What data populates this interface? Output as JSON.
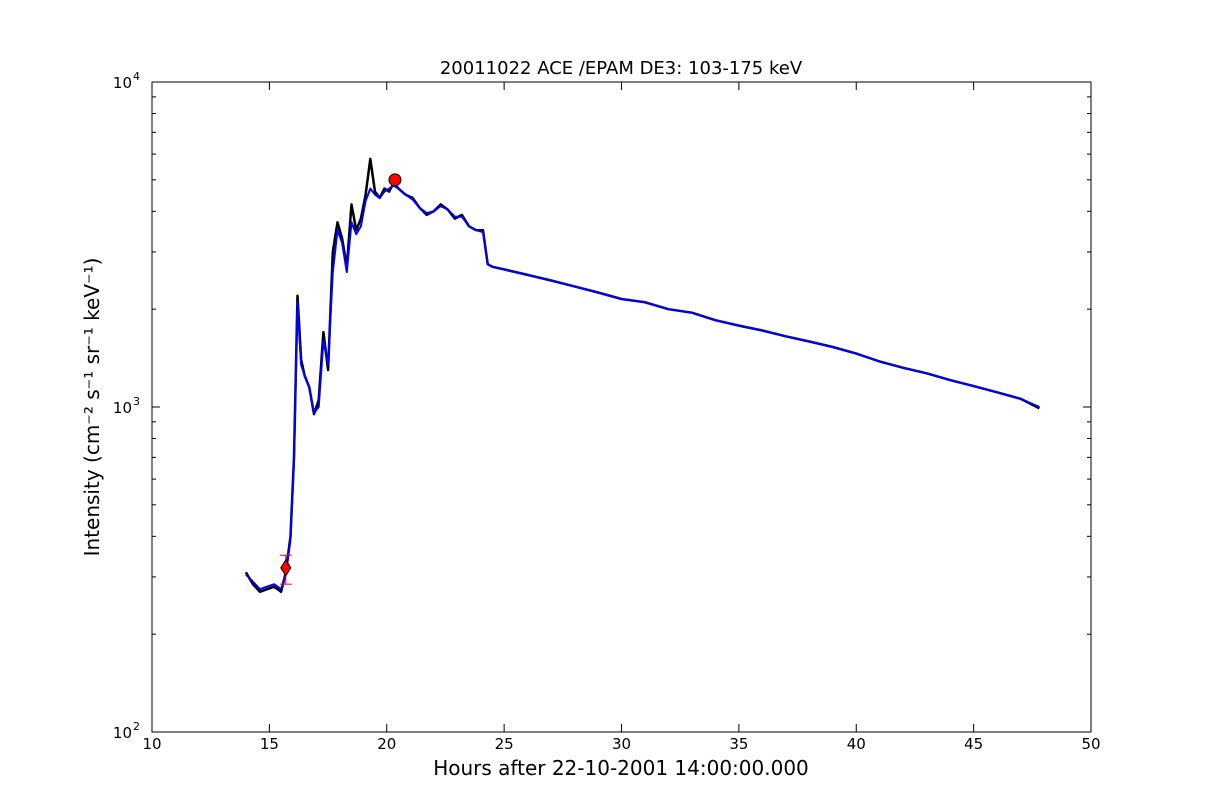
{
  "chart_data": {
    "type": "line",
    "title": "20011022 ACE /EPAM DE3: 103-175 keV",
    "xlabel": "Hours after 22-10-2001 14:00:00.000",
    "ylabel": "Intensity (cm⁻² s⁻¹ sr⁻¹ keV⁻¹)",
    "xlim": [
      10,
      50
    ],
    "ylim": [
      100,
      10000
    ],
    "yscale": "log",
    "grid": false,
    "x_ticks": [
      10,
      15,
      20,
      25,
      30,
      35,
      40,
      45,
      50
    ],
    "x_tick_labels": [
      "10",
      "15",
      "20",
      "25",
      "30",
      "35",
      "40",
      "45",
      "50"
    ],
    "y_ticks": [
      100,
      1000,
      10000
    ],
    "y_tick_labels": [
      "10",
      "10",
      "10"
    ],
    "y_tick_exponents": [
      "2",
      "3",
      "4"
    ],
    "series": [
      {
        "color": "#000000",
        "x": [
          14.0,
          14.3,
          14.6,
          14.9,
          15.2,
          15.5,
          15.7,
          15.9,
          16.05,
          16.2,
          16.35,
          16.5,
          16.7,
          16.9,
          17.1,
          17.3,
          17.5,
          17.7,
          17.9,
          18.1,
          18.3,
          18.5,
          18.7,
          18.9,
          19.1,
          19.3,
          19.5,
          19.7,
          19.9,
          20.1,
          20.3,
          20.5,
          20.8,
          21.1,
          21.4,
          21.7,
          22.0,
          22.3,
          22.6,
          22.9,
          23.2,
          23.5,
          23.8,
          24.1,
          24.3,
          24.5,
          25,
          26,
          27,
          28,
          29,
          30,
          31,
          32,
          33,
          34,
          35,
          36,
          37,
          38,
          39,
          40,
          41,
          42,
          43,
          44,
          45,
          46,
          47,
          47.8
        ],
        "values": [
          310,
          285,
          270,
          275,
          280,
          270,
          310,
          400,
          700,
          2200,
          1400,
          1250,
          1150,
          950,
          1050,
          1700,
          1300,
          3000,
          3700,
          3300,
          2700,
          4200,
          3500,
          3800,
          4500,
          5800,
          4600,
          4400,
          4700,
          4600,
          4900,
          4700,
          4500,
          4400,
          4100,
          3900,
          4000,
          4200,
          4050,
          3800,
          3900,
          3600,
          3500,
          3500,
          2750,
          2700,
          2650,
          2550,
          2450,
          2350,
          2250,
          2150,
          2100,
          2000,
          1950,
          1850,
          1780,
          1720,
          1650,
          1590,
          1530,
          1460,
          1380,
          1320,
          1270,
          1210,
          1160,
          1110,
          1060,
          990
        ]
      },
      {
        "color": "#0000ff",
        "x": [
          14.0,
          14.3,
          14.6,
          14.9,
          15.2,
          15.5,
          15.7,
          15.9,
          16.05,
          16.2,
          16.35,
          16.5,
          16.7,
          16.9,
          17.1,
          17.3,
          17.5,
          17.7,
          17.9,
          18.1,
          18.3,
          18.5,
          18.7,
          18.9,
          19.1,
          19.3,
          19.5,
          19.7,
          19.9,
          20.1,
          20.3,
          20.5,
          20.8,
          21.1,
          21.4,
          21.7,
          22.0,
          22.3,
          22.6,
          22.9,
          23.2,
          23.5,
          23.8,
          24.1,
          24.3,
          24.5,
          25,
          26,
          27,
          28,
          29,
          30,
          31,
          32,
          33,
          34,
          35,
          36,
          37,
          38,
          39,
          40,
          41,
          42,
          43,
          44,
          45,
          46,
          47,
          47.8
        ],
        "values": [
          305,
          290,
          275,
          280,
          285,
          275,
          305,
          390,
          680,
          2100,
          1350,
          1250,
          1150,
          960,
          1000,
          1600,
          1350,
          2600,
          3500,
          3200,
          2600,
          3700,
          3400,
          3600,
          4300,
          4700,
          4500,
          4400,
          4600,
          4700,
          4800,
          4700,
          4500,
          4350,
          4100,
          3950,
          4000,
          4150,
          4050,
          3850,
          3850,
          3600,
          3500,
          3450,
          2750,
          2700,
          2650,
          2550,
          2450,
          2350,
          2250,
          2150,
          2100,
          2000,
          1950,
          1850,
          1780,
          1720,
          1650,
          1590,
          1530,
          1460,
          1380,
          1320,
          1270,
          1210,
          1160,
          1110,
          1060,
          1000
        ]
      }
    ],
    "markers": [
      {
        "shape": "circle",
        "color": "#ff0000",
        "x": 20.35,
        "y": 5000
      },
      {
        "shape": "diamond",
        "color": "#ff0000",
        "x": 15.7,
        "y": 320,
        "y_error": [
          285,
          350
        ]
      }
    ]
  }
}
